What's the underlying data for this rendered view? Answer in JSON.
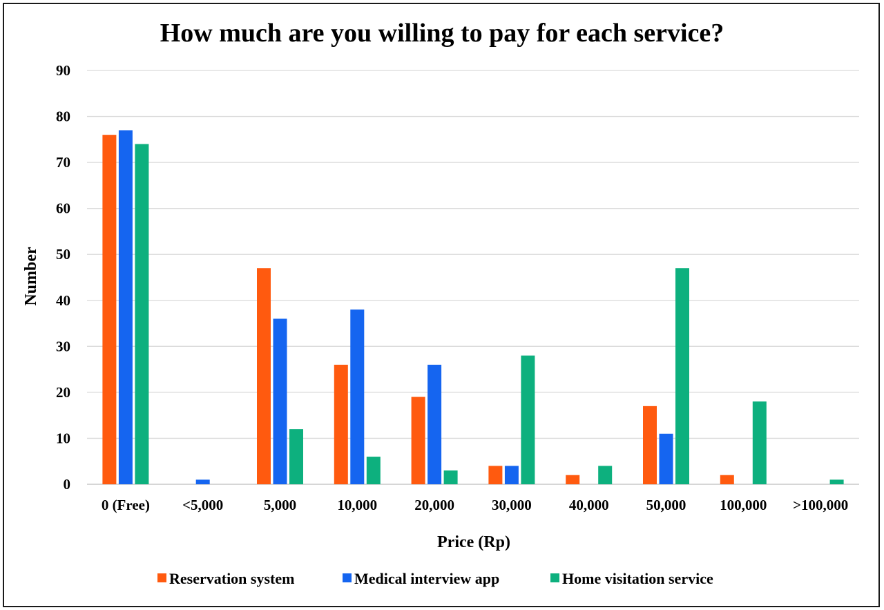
{
  "chart_data": {
    "type": "bar",
    "title": "How much are you willing to pay for each service?",
    "xlabel": "Price (Rp)",
    "ylabel": "Number",
    "ylim": [
      0,
      90
    ],
    "yticks": [
      0,
      10,
      20,
      30,
      40,
      50,
      60,
      70,
      80,
      90
    ],
    "grid": true,
    "legend_position": "bottom",
    "categories": [
      "0 (Free)",
      "<5,000",
      "5,000",
      "10,000",
      "20,000",
      "30,000",
      "40,000",
      "50,000",
      "100,000",
      ">100,000"
    ],
    "series": [
      {
        "name": "Reservation system",
        "color": "#ff5a0f",
        "values": [
          76,
          0,
          47,
          26,
          19,
          4,
          2,
          17,
          2,
          0
        ]
      },
      {
        "name": "Medical interview app",
        "color": "#1565f0",
        "values": [
          77,
          1,
          36,
          38,
          26,
          4,
          0,
          11,
          0,
          0
        ]
      },
      {
        "name": "Home visitation service",
        "color": "#0db07e",
        "values": [
          74,
          0,
          12,
          6,
          3,
          28,
          4,
          47,
          18,
          1
        ]
      }
    ]
  }
}
